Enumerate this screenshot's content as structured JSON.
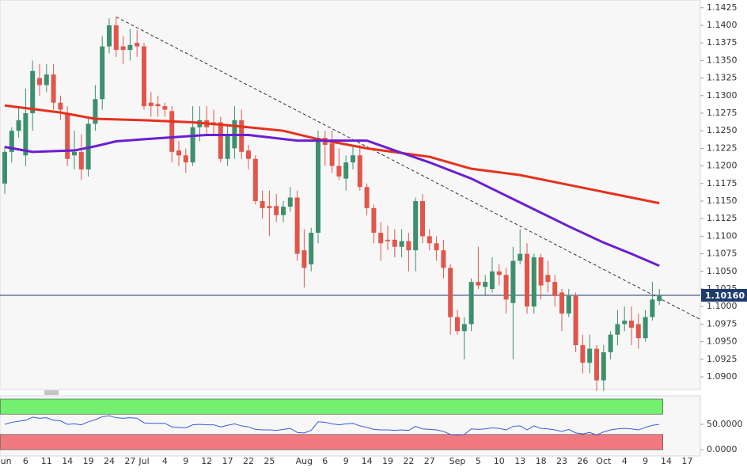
{
  "chart_data": {
    "type": "candlestick",
    "categories": [
      "Jun",
      null,
      null,
      "6",
      null,
      null,
      "11",
      null,
      null,
      "14",
      null,
      null,
      "19",
      null,
      null,
      "24",
      null,
      null,
      "27",
      null,
      "Jul",
      null,
      null,
      "4",
      null,
      null,
      "9",
      null,
      null,
      "12",
      null,
      null,
      "17",
      null,
      null,
      "22",
      null,
      null,
      "25",
      null,
      null,
      null,
      null,
      "Aug",
      null,
      null,
      "6",
      null,
      null,
      "9",
      null,
      null,
      "14",
      null,
      null,
      "19",
      null,
      null,
      "22",
      null,
      null,
      "27",
      null,
      null,
      null,
      "Sep",
      null,
      null,
      "5",
      null,
      null,
      "10",
      null,
      null,
      "13",
      null,
      null,
      "18",
      null,
      null,
      "23",
      null,
      null,
      "26",
      null,
      null,
      "Oct",
      null,
      null,
      "4",
      null,
      null,
      "9",
      null,
      null,
      "14",
      null,
      null,
      "17"
    ],
    "open": [
      1.1175,
      1.122,
      1.125,
      1.1215,
      1.1275,
      1.1325,
      1.1315,
      1.133,
      1.129,
      1.1275,
      1.1215,
      1.122,
      1.1195,
      1.126,
      1.1295,
      1.137,
      1.14,
      1.137,
      1.1365,
      1.1375,
      1.137,
      1.129,
      1.1288,
      1.1285,
      1.1278,
      1.1222,
      1.1215,
      1.1205,
      1.1255,
      1.1265,
      1.1262,
      1.1262,
      1.121,
      1.1225,
      1.1265,
      1.1222,
      1.121,
      1.115,
      1.1143,
      1.1143,
      1.113,
      1.1142,
      1.1155,
      1.108,
      1.106,
      1.1105,
      1.124,
      1.1232,
      1.12,
      1.1182,
      1.1205,
      1.1215,
      1.117,
      1.114,
      1.1105,
      1.1095,
      1.1095,
      1.1085,
      1.1093,
      1.108,
      1.115,
      1.11,
      1.109,
      1.108,
      1.1055,
      1.0985,
      1.0965,
      1.0975,
      1.1035,
      1.1028,
      1.1025,
      1.105,
      1.1045,
      1.1005,
      1.1065,
      1.1075,
      1.1,
      1.107,
      1.1045,
      1.1035,
      1.102,
      1.099,
      1.1015,
      1.0945,
      1.092,
      1.094,
      1.0895,
      1.0935,
      1.096,
      1.0975,
      1.098,
      1.0975,
      1.0955,
      1.0985,
      1.1008,
      null,
      null,
      null,
      null
    ],
    "high": [
      1.1228,
      1.1255,
      1.1285,
      1.131,
      1.135,
      1.1345,
      1.1345,
      1.1345,
      1.13,
      1.1285,
      1.125,
      1.1245,
      1.127,
      1.1315,
      1.1385,
      1.141,
      1.1412,
      1.1385,
      1.1395,
      1.1393,
      1.1375,
      1.1305,
      1.13,
      1.129,
      1.1285,
      1.1235,
      1.1225,
      1.1285,
      1.1285,
      1.1285,
      1.128,
      1.127,
      1.126,
      1.1285,
      1.128,
      1.123,
      1.1215,
      1.1165,
      1.1165,
      1.116,
      1.115,
      1.117,
      1.1165,
      1.111,
      1.1112,
      1.125,
      1.125,
      1.125,
      1.1225,
      1.1215,
      1.123,
      1.123,
      1.1175,
      1.1145,
      1.112,
      1.1115,
      1.111,
      1.111,
      1.1105,
      1.1155,
      1.116,
      1.111,
      1.11,
      1.1095,
      1.106,
      1.0995,
      1.0985,
      1.104,
      1.1085,
      1.1045,
      1.107,
      1.106,
      1.1055,
      1.1085,
      1.111,
      1.109,
      1.1075,
      1.1075,
      1.1065,
      1.1045,
      1.1025,
      1.1025,
      1.102,
      1.096,
      1.096,
      1.0945,
      1.0945,
      1.0965,
      1.0995,
      1.1,
      1.1,
      1.099,
      1.0995,
      1.1035,
      1.1025,
      null,
      null,
      null,
      null
    ],
    "low": [
      1.116,
      1.1205,
      1.124,
      1.12,
      1.125,
      1.13,
      1.1305,
      1.128,
      1.1265,
      1.12,
      1.1195,
      1.118,
      1.1185,
      1.125,
      1.128,
      1.136,
      1.1355,
      1.1345,
      1.135,
      1.1355,
      1.128,
      1.127,
      1.127,
      1.127,
      1.1205,
      1.12,
      1.119,
      1.12,
      1.1235,
      1.1245,
      1.1245,
      1.1205,
      1.12,
      1.121,
      1.121,
      1.1195,
      1.1145,
      1.1125,
      1.11,
      1.112,
      1.112,
      1.1135,
      1.1065,
      1.1027,
      1.105,
      1.109,
      1.12,
      1.119,
      1.118,
      1.1165,
      1.1195,
      1.1165,
      1.113,
      1.109,
      1.1065,
      1.108,
      1.107,
      1.107,
      1.105,
      1.105,
      1.109,
      1.108,
      1.1065,
      1.104,
      1.096,
      1.096,
      1.0925,
      1.0965,
      1.1025,
      1.1015,
      1.102,
      1.103,
      1.099,
      1.0925,
      1.106,
      1.099,
      1.099,
      1.101,
      1.102,
      1.1,
      1.0965,
      1.0985,
      1.0935,
      1.0905,
      1.0905,
      1.088,
      1.088,
      1.0925,
      1.0945,
      1.0965,
      1.0945,
      1.094,
      1.095,
      1.098,
      1.1002,
      null,
      null,
      null,
      null
    ],
    "close": [
      1.122,
      1.125,
      1.1265,
      1.1275,
      1.1335,
      1.1315,
      1.133,
      1.129,
      1.128,
      1.121,
      1.122,
      1.1195,
      1.126,
      1.1295,
      1.137,
      1.14,
      1.1365,
      1.1365,
      1.1372,
      1.137,
      1.1285,
      1.1285,
      1.1285,
      1.128,
      1.122,
      1.1215,
      1.1205,
      1.1255,
      1.1265,
      1.1255,
      1.1258,
      1.121,
      1.1245,
      1.1265,
      1.122,
      1.121,
      1.115,
      1.114,
      1.114,
      1.113,
      1.1142,
      1.1155,
      1.1075,
      1.1055,
      1.1105,
      1.124,
      1.123,
      1.12,
      1.1185,
      1.1205,
      1.1215,
      1.117,
      1.114,
      1.1105,
      1.109,
      1.1093,
      1.1085,
      1.1093,
      1.108,
      1.115,
      1.11,
      1.109,
      1.108,
      1.1055,
      1.0985,
      1.0965,
      1.0975,
      1.1035,
      1.103,
      1.1035,
      1.105,
      1.1045,
      1.101,
      1.1065,
      1.1075,
      1.1,
      1.107,
      1.103,
      1.1035,
      1.1015,
      1.099,
      1.1015,
      1.0945,
      1.092,
      1.094,
      1.0895,
      1.0935,
      1.096,
      1.0975,
      1.098,
      1.097,
      1.0955,
      1.0985,
      1.101,
      1.1016,
      null,
      null,
      null,
      null
    ],
    "up_color": "#3d8f6e",
    "down_color": "#e0564b",
    "ylim": [
      1.0882,
      1.1436
    ],
    "yticks": [
      {
        "value": 1.09,
        "label": "1.0900"
      },
      {
        "value": 1.0925,
        "label": "1.0925"
      },
      {
        "value": 1.095,
        "label": "1.0950"
      },
      {
        "value": 1.0975,
        "label": "1.0975"
      },
      {
        "value": 1.1,
        "label": "1.1000"
      },
      {
        "value": 1.1025,
        "label": "1.1025"
      },
      {
        "value": 1.105,
        "label": "1.1050"
      },
      {
        "value": 1.1075,
        "label": "1.1075"
      },
      {
        "value": 1.11,
        "label": "1.1100"
      },
      {
        "value": 1.1125,
        "label": "1.1125"
      },
      {
        "value": 1.115,
        "label": "1.1150"
      },
      {
        "value": 1.1175,
        "label": "1.1175"
      },
      {
        "value": 1.12,
        "label": "1.1200"
      },
      {
        "value": 1.1225,
        "label": "1.1225"
      },
      {
        "value": 1.125,
        "label": "1.1250"
      },
      {
        "value": 1.1275,
        "label": "1.1275"
      },
      {
        "value": 1.13,
        "label": "1.1300"
      },
      {
        "value": 1.1325,
        "label": "1.1325"
      },
      {
        "value": 1.135,
        "label": "1.1350"
      },
      {
        "value": 1.1375,
        "label": "1.1375"
      },
      {
        "value": 1.14,
        "label": "1.1400"
      },
      {
        "value": 1.1425,
        "label": "1.1425"
      }
    ],
    "moving_averages": [
      {
        "color": "#e5311d",
        "x": [
          0,
          8,
          13,
          20,
          27,
          33,
          40,
          45,
          52,
          61,
          67,
          74,
          81,
          88,
          94
        ],
        "values": [
          1.1286,
          1.1276,
          1.1267,
          1.1265,
          1.1262,
          1.1257,
          1.125,
          1.1238,
          1.1225,
          1.1213,
          1.1196,
          1.1187,
          1.1173,
          1.1159,
          1.1147
        ]
      },
      {
        "color": "#6a1fd1",
        "x": [
          0,
          4,
          10,
          13,
          16,
          20,
          29,
          35,
          42,
          47,
          52,
          56,
          61,
          67,
          74,
          81,
          86,
          90,
          94
        ],
        "values": [
          1.1227,
          1.122,
          1.1222,
          1.1228,
          1.1235,
          1.1238,
          1.1244,
          1.1244,
          1.1236,
          1.1236,
          1.1236,
          1.1222,
          1.1205,
          1.1182,
          1.1148,
          1.1114,
          1.1091,
          1.1075,
          1.1058
        ]
      }
    ],
    "trendline": {
      "color": "#333333",
      "x": [
        16,
        100
      ],
      "values": [
        1.1412,
        1.0981
      ]
    },
    "last_price": {
      "value": 1.1016,
      "label": "1.10160",
      "color": "#1f3a6e"
    },
    "indicator": {
      "color": "#3b5bdb",
      "values": [
        50,
        54,
        56,
        58,
        64,
        62,
        63,
        58,
        57,
        50,
        51,
        49,
        55,
        59,
        65,
        67,
        63,
        62,
        63,
        62,
        53,
        52,
        52,
        52,
        45,
        44,
        43,
        49,
        50,
        49,
        49,
        45,
        48,
        51,
        47,
        45,
        40,
        39,
        39,
        38,
        40,
        42,
        34,
        33,
        38,
        55,
        54,
        51,
        49,
        51,
        52,
        47,
        44,
        40,
        39,
        39,
        38,
        39,
        38,
        46,
        41,
        40,
        39,
        36,
        30,
        29,
        30,
        41,
        40,
        41,
        43,
        42,
        39,
        46,
        47,
        39,
        47,
        42,
        41,
        39,
        36,
        40,
        33,
        31,
        34,
        29,
        35,
        39,
        41,
        42,
        41,
        39,
        44,
        48,
        50,
        null,
        null,
        null,
        null
      ],
      "ylim": [
        0,
        100
      ],
      "yticks": [
        {
          "value": 50,
          "label": "50.0000"
        },
        {
          "value": 0,
          "label": "0.0000"
        }
      ],
      "zones": [
        {
          "range": [
            70,
            100
          ],
          "color": "#74f071"
        },
        {
          "range": [
            0,
            30
          ],
          "color": "#f07a80"
        }
      ]
    }
  }
}
